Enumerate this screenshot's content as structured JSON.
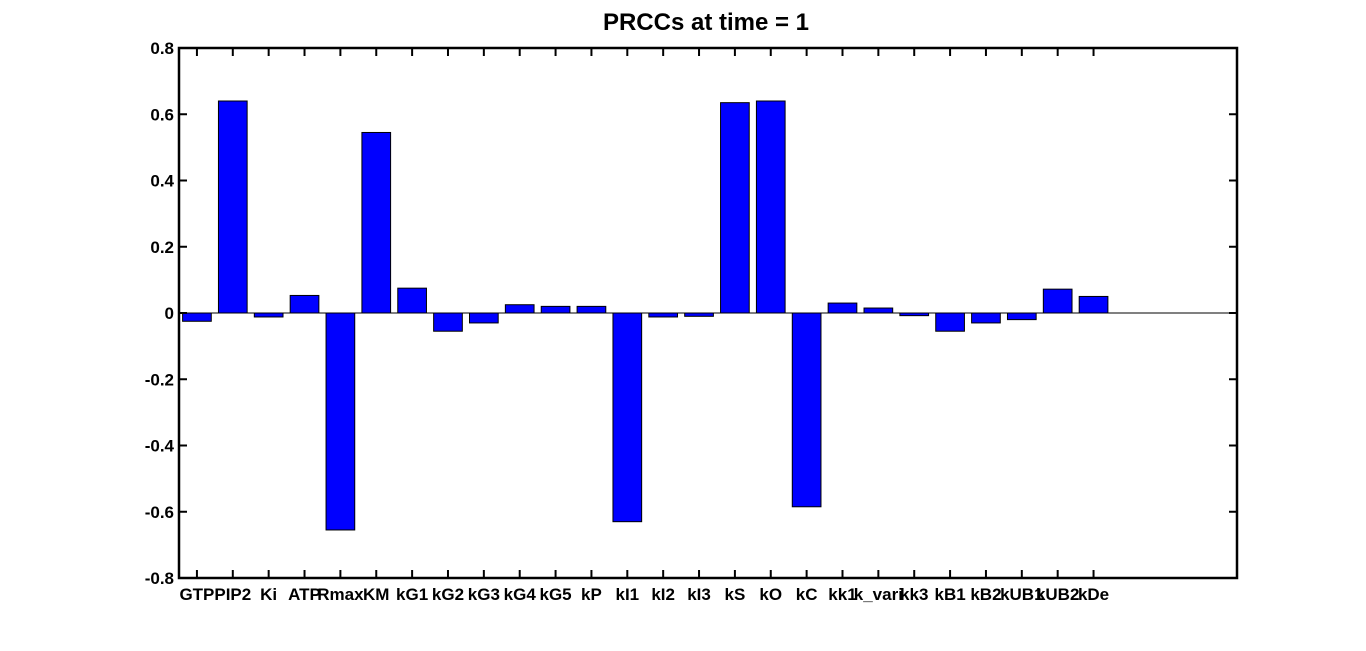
{
  "chart_data": {
    "type": "bar",
    "title": "PRCCs at time = 1",
    "xlabel": "",
    "ylabel": "",
    "ylim": [
      -0.8,
      0.8
    ],
    "yticks": [
      "0.8",
      "0.6",
      "0.4",
      "0.2",
      "0",
      "-0.2",
      "-0.4",
      "-0.6",
      "-0.8"
    ],
    "ytick_values": [
      0.8,
      0.6,
      0.4,
      0.2,
      0,
      -0.2,
      -0.4,
      -0.6,
      -0.8
    ],
    "xlim": [
      0.5,
      30
    ],
    "categories": [
      "GTP",
      "PIP2",
      "Ki",
      "ATP",
      "Rmax",
      "KM",
      "kG1",
      "kG2",
      "kG3",
      "kG4",
      "kG5",
      "kP",
      "kI1",
      "kI2",
      "kI3",
      "kS",
      "kO",
      "kC",
      "kk1",
      "k_vari",
      "kk3",
      "kB1",
      "kB2",
      "kUB1",
      "kUB2",
      "kDe"
    ],
    "values": [
      -0.025,
      0.64,
      -0.012,
      0.053,
      -0.655,
      0.545,
      0.075,
      -0.055,
      -0.03,
      0.025,
      0.02,
      0.02,
      -0.63,
      -0.012,
      -0.01,
      0.635,
      0.64,
      -0.585,
      0.03,
      0.015,
      -0.008,
      -0.055,
      -0.03,
      -0.02,
      0.072,
      0.05
    ],
    "bar_color": "#0000ff",
    "grid": false,
    "zero_line": true
  }
}
